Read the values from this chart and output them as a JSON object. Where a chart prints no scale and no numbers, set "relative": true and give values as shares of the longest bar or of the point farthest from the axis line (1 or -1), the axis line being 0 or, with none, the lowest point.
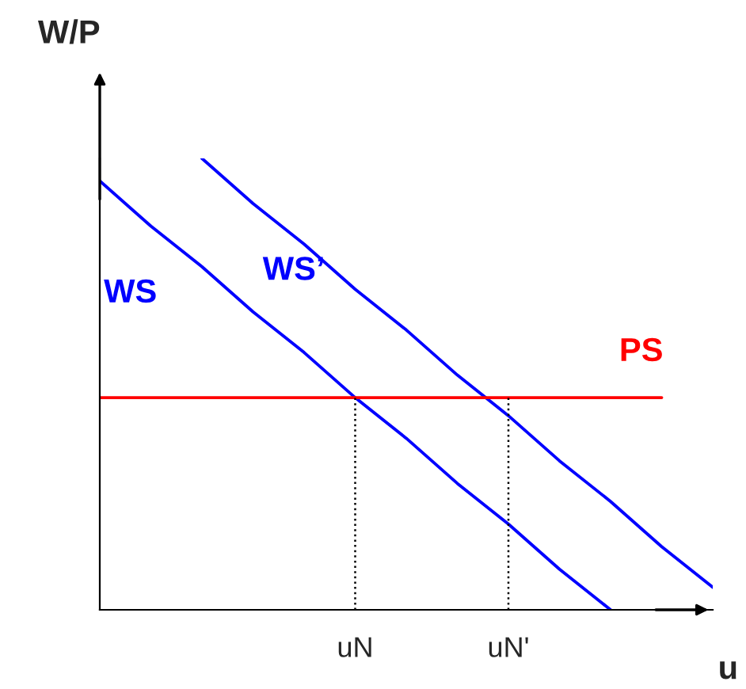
{
  "chart_data": {
    "type": "line",
    "relative": true,
    "xlabel": "u",
    "ylabel": "W/P",
    "categories": [
      null,
      null,
      null,
      null,
      null,
      "uN",
      null,
      null,
      "uN'",
      null,
      null,
      null,
      null
    ],
    "tick_labels": "x",
    "marker": "none",
    "series": [
      {
        "name": "WS",
        "color": "#0000ff",
        "values": [
          0.95,
          0.85,
          0.76,
          0.66,
          0.57,
          0.47,
          0.38,
          0.28,
          0.19,
          0.09,
          0.0,
          null,
          null
        ]
      },
      {
        "name": "WS’",
        "color": "#0000ff",
        "values": [
          null,
          null,
          1.0,
          0.9,
          0.81,
          0.71,
          0.62,
          0.52,
          0.43,
          0.33,
          0.24,
          0.14,
          0.05
        ]
      },
      {
        "name": "PS",
        "color": "#ff0000",
        "values": [
          0.47,
          0.47,
          0.47,
          0.47,
          0.47,
          0.47,
          0.47,
          0.47,
          0.47,
          0.47,
          0.47,
          0.47,
          null
        ]
      }
    ],
    "ref_lines": [
      {
        "axis": "x",
        "value": "uN",
        "color": "#000000",
        "line_style": "dotted"
      },
      {
        "axis": "x",
        "value": "uN'",
        "color": "#000000",
        "line_style": "dotted"
      }
    ]
  }
}
